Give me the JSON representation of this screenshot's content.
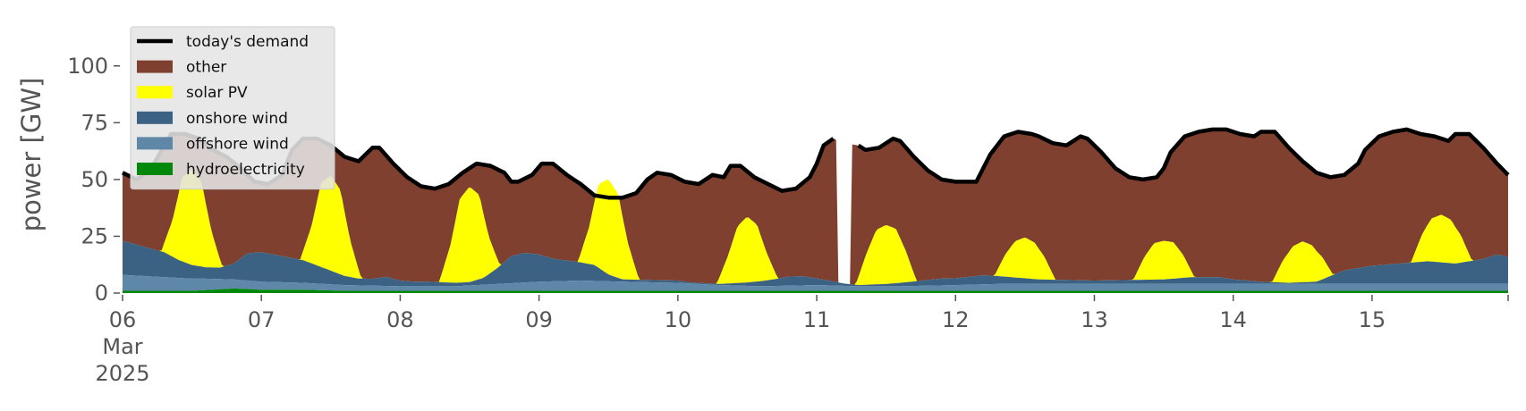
{
  "chart_data": {
    "type": "area",
    "ylabel": "power [GW]",
    "ylim": [
      0,
      118
    ],
    "xlim": [
      0,
      9.98
    ],
    "yticks": [
      0,
      25,
      50,
      75,
      100
    ],
    "x_ticks": [
      {
        "x": 0,
        "label": "06",
        "sub": [
          "Mar",
          "2025"
        ]
      },
      {
        "x": 1,
        "label": "07"
      },
      {
        "x": 2,
        "label": "08"
      },
      {
        "x": 3,
        "label": "09"
      },
      {
        "x": 4,
        "label": "10"
      },
      {
        "x": 5,
        "label": "11"
      },
      {
        "x": 6,
        "label": "12"
      },
      {
        "x": 7,
        "label": "13"
      },
      {
        "x": 8,
        "label": "14"
      },
      {
        "x": 9,
        "label": "15"
      }
    ],
    "grid": false,
    "legend_position": "top-left",
    "demand_gap": [
      5.15,
      5.25
    ],
    "stack_order_bottom_up": [
      "hydroelectricity",
      "offshore wind",
      "onshore wind",
      "solar PV",
      "other"
    ],
    "legend": [
      {
        "key": "demand",
        "label": "today's demand",
        "kind": "line",
        "color": "#000000"
      },
      {
        "key": "other",
        "label": "other",
        "kind": "patch",
        "color": "#7f4030"
      },
      {
        "key": "solar",
        "label": "solar PV",
        "kind": "patch",
        "color": "#ffff00"
      },
      {
        "key": "onshore",
        "label": "onshore wind",
        "kind": "patch",
        "color": "#3b6283"
      },
      {
        "key": "offshore",
        "label": "offshore wind",
        "kind": "patch",
        "color": "#5f87a8"
      },
      {
        "key": "hydro",
        "label": "hydroelectricity",
        "kind": "patch",
        "color": "#00880a"
      }
    ],
    "series": {
      "demand": [
        [
          0,
          53
        ],
        [
          0.1,
          50
        ],
        [
          0.2,
          54
        ],
        [
          0.3,
          65
        ],
        [
          0.35,
          70
        ],
        [
          0.45,
          70
        ],
        [
          0.55,
          68
        ],
        [
          0.65,
          63
        ],
        [
          0.75,
          60
        ],
        [
          0.85,
          55
        ],
        [
          0.95,
          49
        ],
        [
          1.05,
          48
        ],
        [
          1.15,
          52
        ],
        [
          1.22,
          63
        ],
        [
          1.3,
          68
        ],
        [
          1.4,
          68
        ],
        [
          1.5,
          65
        ],
        [
          1.6,
          60
        ],
        [
          1.7,
          58
        ],
        [
          1.8,
          64
        ],
        [
          1.85,
          64
        ],
        [
          1.95,
          57
        ],
        [
          2.05,
          51
        ],
        [
          2.15,
          47
        ],
        [
          2.25,
          46
        ],
        [
          2.35,
          48
        ],
        [
          2.45,
          53
        ],
        [
          2.55,
          57
        ],
        [
          2.65,
          56
        ],
        [
          2.75,
          53
        ],
        [
          2.8,
          49
        ],
        [
          2.85,
          49
        ],
        [
          2.95,
          52
        ],
        [
          3.02,
          57
        ],
        [
          3.1,
          57
        ],
        [
          3.2,
          52
        ],
        [
          3.3,
          48
        ],
        [
          3.4,
          43
        ],
        [
          3.5,
          42
        ],
        [
          3.6,
          42
        ],
        [
          3.7,
          44
        ],
        [
          3.78,
          50
        ],
        [
          3.85,
          53
        ],
        [
          3.95,
          52
        ],
        [
          4.05,
          49
        ],
        [
          4.15,
          48
        ],
        [
          4.25,
          52
        ],
        [
          4.33,
          51
        ],
        [
          4.38,
          56
        ],
        [
          4.45,
          56
        ],
        [
          4.55,
          51
        ],
        [
          4.65,
          48
        ],
        [
          4.75,
          45
        ],
        [
          4.85,
          46
        ],
        [
          4.95,
          51
        ],
        [
          5.0,
          57
        ],
        [
          5.05,
          65
        ],
        [
          5.12,
          68
        ],
        [
          5.2,
          66
        ],
        [
          5.3,
          65
        ],
        [
          5.35,
          63
        ],
        [
          5.45,
          64
        ],
        [
          5.55,
          68
        ],
        [
          5.6,
          67
        ],
        [
          5.7,
          60
        ],
        [
          5.8,
          54
        ],
        [
          5.9,
          50
        ],
        [
          6.0,
          49
        ],
        [
          6.1,
          49
        ],
        [
          6.15,
          49
        ],
        [
          6.25,
          61
        ],
        [
          6.35,
          69
        ],
        [
          6.45,
          71
        ],
        [
          6.55,
          70
        ],
        [
          6.6,
          69
        ],
        [
          6.7,
          66
        ],
        [
          6.8,
          65
        ],
        [
          6.9,
          69
        ],
        [
          6.95,
          68
        ],
        [
          7.05,
          62
        ],
        [
          7.15,
          55
        ],
        [
          7.25,
          51
        ],
        [
          7.35,
          50
        ],
        [
          7.45,
          51
        ],
        [
          7.5,
          55
        ],
        [
          7.55,
          62
        ],
        [
          7.65,
          69
        ],
        [
          7.75,
          71
        ],
        [
          7.85,
          72
        ],
        [
          7.95,
          72
        ],
        [
          8.05,
          70
        ],
        [
          8.15,
          69
        ],
        [
          8.2,
          71
        ],
        [
          8.3,
          71
        ],
        [
          8.4,
          64
        ],
        [
          8.5,
          58
        ],
        [
          8.6,
          53
        ],
        [
          8.7,
          51
        ],
        [
          8.8,
          52
        ],
        [
          8.9,
          57
        ],
        [
          8.95,
          63
        ],
        [
          9.05,
          69
        ],
        [
          9.15,
          71
        ],
        [
          9.25,
          72
        ],
        [
          9.35,
          70
        ],
        [
          9.45,
          69
        ],
        [
          9.55,
          67
        ],
        [
          9.6,
          70
        ],
        [
          9.7,
          70
        ],
        [
          9.8,
          64
        ],
        [
          9.9,
          57
        ],
        [
          9.98,
          52
        ]
      ],
      "hydro": [
        [
          0,
          1
        ],
        [
          0.5,
          1
        ],
        [
          0.8,
          2
        ],
        [
          1,
          1.5
        ],
        [
          1.3,
          1.5
        ],
        [
          1.6,
          1
        ],
        [
          2,
          1
        ],
        [
          2.5,
          1
        ],
        [
          3,
          1
        ],
        [
          3.5,
          1
        ],
        [
          4,
          1
        ],
        [
          4.5,
          1
        ],
        [
          5,
          1
        ],
        [
          5.5,
          1
        ],
        [
          6,
          1
        ],
        [
          6.5,
          1
        ],
        [
          7,
          1
        ],
        [
          7.5,
          1
        ],
        [
          8,
          1
        ],
        [
          8.5,
          1
        ],
        [
          9,
          1
        ],
        [
          9.5,
          1
        ],
        [
          9.98,
          1
        ]
      ],
      "offshore": [
        [
          0,
          7
        ],
        [
          0.3,
          6
        ],
        [
          0.6,
          5
        ],
        [
          0.8,
          4
        ],
        [
          1,
          3.5
        ],
        [
          1.3,
          3
        ],
        [
          1.6,
          2.5
        ],
        [
          2,
          2
        ],
        [
          2.4,
          2
        ],
        [
          2.7,
          3
        ],
        [
          3,
          4
        ],
        [
          3.3,
          4.5
        ],
        [
          3.6,
          4
        ],
        [
          4,
          3.5
        ],
        [
          4.3,
          2.5
        ],
        [
          4.6,
          2
        ],
        [
          5,
          2.5
        ],
        [
          5.3,
          2
        ],
        [
          5.6,
          2
        ],
        [
          6,
          2.5
        ],
        [
          6.3,
          3
        ],
        [
          6.6,
          3
        ],
        [
          7,
          3
        ],
        [
          7.3,
          3
        ],
        [
          7.6,
          3
        ],
        [
          8,
          3
        ],
        [
          8.3,
          3
        ],
        [
          8.6,
          3
        ],
        [
          9,
          3
        ],
        [
          9.3,
          3
        ],
        [
          9.6,
          3
        ],
        [
          9.98,
          3
        ]
      ],
      "onshore": [
        [
          0,
          15
        ],
        [
          0.15,
          13
        ],
        [
          0.3,
          11
        ],
        [
          0.4,
          8
        ],
        [
          0.5,
          6
        ],
        [
          0.6,
          5
        ],
        [
          0.7,
          5
        ],
        [
          0.8,
          7
        ],
        [
          0.9,
          12
        ],
        [
          1,
          13
        ],
        [
          1.1,
          12
        ],
        [
          1.2,
          11
        ],
        [
          1.3,
          10
        ],
        [
          1.4,
          8
        ],
        [
          1.5,
          6
        ],
        [
          1.6,
          4
        ],
        [
          1.7,
          3
        ],
        [
          1.8,
          3
        ],
        [
          1.9,
          4
        ],
        [
          2,
          2.5
        ],
        [
          2.1,
          2
        ],
        [
          2.2,
          2
        ],
        [
          2.4,
          1.5
        ],
        [
          2.5,
          1.5
        ],
        [
          2.6,
          3
        ],
        [
          2.7,
          7
        ],
        [
          2.8,
          12
        ],
        [
          2.9,
          13
        ],
        [
          3,
          12
        ],
        [
          3.1,
          10
        ],
        [
          3.2,
          9
        ],
        [
          3.3,
          8
        ],
        [
          3.4,
          7
        ],
        [
          3.5,
          3
        ],
        [
          3.6,
          1
        ],
        [
          3.7,
          1
        ],
        [
          3.8,
          1
        ],
        [
          3.9,
          1
        ],
        [
          4,
          1
        ],
        [
          4.1,
          0.5
        ],
        [
          4.3,
          0.5
        ],
        [
          4.5,
          1.5
        ],
        [
          4.7,
          3
        ],
        [
          4.8,
          4
        ],
        [
          4.9,
          4
        ],
        [
          5.0,
          3
        ],
        [
          5.1,
          2
        ],
        [
          5.2,
          1
        ],
        [
          5.3,
          0.5
        ],
        [
          5.5,
          1
        ],
        [
          5.7,
          2
        ],
        [
          5.9,
          3
        ],
        [
          6.0,
          3
        ],
        [
          6.2,
          4
        ],
        [
          6.4,
          3
        ],
        [
          6.6,
          2
        ],
        [
          7.0,
          1.5
        ],
        [
          7.5,
          2
        ],
        [
          7.7,
          3
        ],
        [
          7.9,
          3
        ],
        [
          8,
          2
        ],
        [
          8.2,
          1
        ],
        [
          8.4,
          0.5
        ],
        [
          8.6,
          1
        ],
        [
          8.8,
          6
        ],
        [
          9.0,
          8
        ],
        [
          9.2,
          9
        ],
        [
          9.4,
          10
        ],
        [
          9.6,
          9
        ],
        [
          9.7,
          10
        ],
        [
          9.8,
          11
        ],
        [
          9.9,
          13
        ],
        [
          9.98,
          12
        ]
      ],
      "solar": [
        [
          0,
          0
        ],
        [
          0.28,
          0
        ],
        [
          0.36,
          16
        ],
        [
          0.43,
          37
        ],
        [
          0.5,
          42
        ],
        [
          0.57,
          37
        ],
        [
          0.64,
          16
        ],
        [
          0.72,
          0
        ],
        [
          1.28,
          0
        ],
        [
          1.36,
          16
        ],
        [
          1.43,
          37
        ],
        [
          1.5,
          42
        ],
        [
          1.57,
          37
        ],
        [
          1.64,
          16
        ],
        [
          1.72,
          0
        ],
        [
          2.28,
          0
        ],
        [
          2.36,
          16
        ],
        [
          2.43,
          37
        ],
        [
          2.5,
          42
        ],
        [
          2.57,
          37
        ],
        [
          2.64,
          16
        ],
        [
          2.72,
          0
        ],
        [
          3.28,
          0
        ],
        [
          3.36,
          16
        ],
        [
          3.43,
          37
        ],
        [
          3.5,
          42
        ],
        [
          3.57,
          37
        ],
        [
          3.64,
          16
        ],
        [
          3.72,
          0
        ],
        [
          4.28,
          0
        ],
        [
          4.36,
          12
        ],
        [
          4.43,
          25
        ],
        [
          4.5,
          29
        ],
        [
          4.57,
          25
        ],
        [
          4.64,
          12
        ],
        [
          4.72,
          0
        ],
        [
          5.28,
          0
        ],
        [
          5.36,
          14
        ],
        [
          5.43,
          24
        ],
        [
          5.5,
          26
        ],
        [
          5.57,
          24
        ],
        [
          5.64,
          14
        ],
        [
          5.72,
          0
        ],
        [
          6.28,
          0
        ],
        [
          6.36,
          10
        ],
        [
          6.43,
          16
        ],
        [
          6.5,
          18
        ],
        [
          6.57,
          16
        ],
        [
          6.64,
          10
        ],
        [
          6.72,
          0
        ],
        [
          7.28,
          0
        ],
        [
          7.36,
          10
        ],
        [
          7.43,
          16
        ],
        [
          7.5,
          17
        ],
        [
          7.57,
          16
        ],
        [
          7.64,
          10
        ],
        [
          7.72,
          0
        ],
        [
          8.28,
          0
        ],
        [
          8.36,
          10
        ],
        [
          8.43,
          16
        ],
        [
          8.5,
          18
        ],
        [
          8.57,
          16
        ],
        [
          8.64,
          10
        ],
        [
          8.72,
          0
        ],
        [
          9.28,
          0
        ],
        [
          9.36,
          12
        ],
        [
          9.43,
          19
        ],
        [
          9.5,
          21
        ],
        [
          9.57,
          19
        ],
        [
          9.64,
          12
        ],
        [
          9.72,
          0
        ],
        [
          9.98,
          0
        ]
      ]
    }
  }
}
